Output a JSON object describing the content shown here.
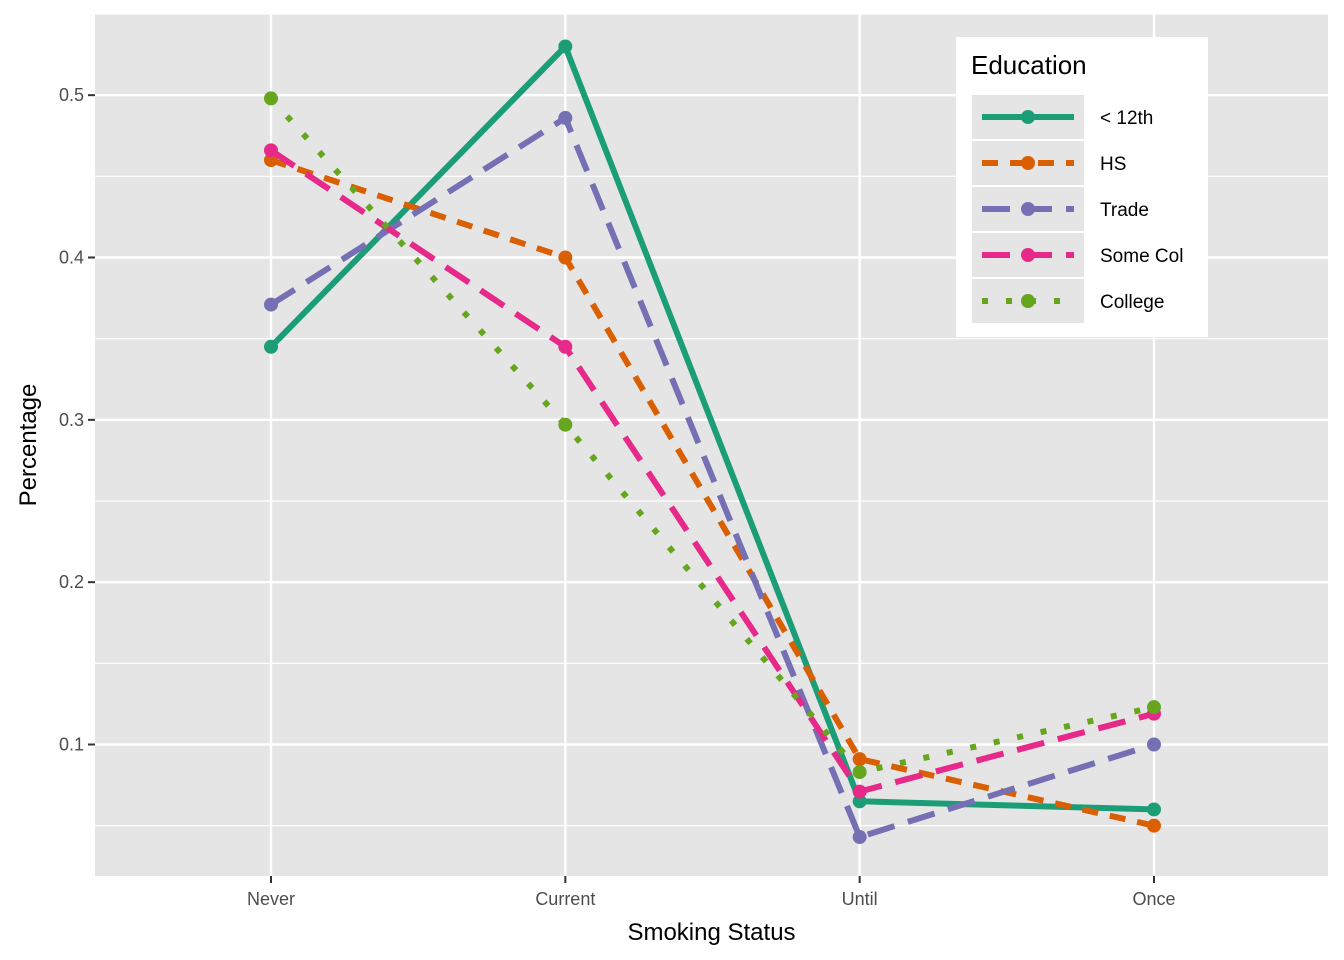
{
  "chart_data": {
    "type": "line",
    "title": "",
    "xlabel": "Smoking Status",
    "ylabel": "Percentage",
    "categories": [
      "Never",
      "Current",
      "Until",
      "Once"
    ],
    "ylim": [
      0.019,
      0.55
    ],
    "y_ticks": [
      0.1,
      0.2,
      0.3,
      0.4,
      0.5
    ],
    "y_tick_labels": [
      "0.1",
      "0.2",
      "0.3",
      "0.4",
      "0.5"
    ],
    "grid": true,
    "legend": {
      "title": "Education",
      "placement": "top-right"
    },
    "colors": {
      "panel_background": "#e5e5e5",
      "grid": "#ffffff",
      "tick_text": "#4d4d4d",
      "legend_background": "#ffffff",
      "legend_key_background": "#e5e5e5"
    },
    "series": [
      {
        "name": "< 12th",
        "values": [
          0.345,
          0.53,
          0.065,
          0.06
        ],
        "color": "#1b9e77",
        "linetype": "solid"
      },
      {
        "name": "HS",
        "values": [
          0.46,
          0.4,
          0.091,
          0.05
        ],
        "color": "#d95f02",
        "linetype": "dashed"
      },
      {
        "name": "Trade",
        "values": [
          0.371,
          0.486,
          0.043,
          0.1
        ],
        "color": "#7570b3",
        "linetype": "longdash"
      },
      {
        "name": "Some Col",
        "values": [
          0.466,
          0.345,
          0.071,
          0.119
        ],
        "color": "#e7298a",
        "linetype": "longdash"
      },
      {
        "name": "College",
        "values": [
          0.498,
          0.297,
          0.083,
          0.123
        ],
        "color": "#66a61e",
        "linetype": "dotted"
      }
    ]
  }
}
